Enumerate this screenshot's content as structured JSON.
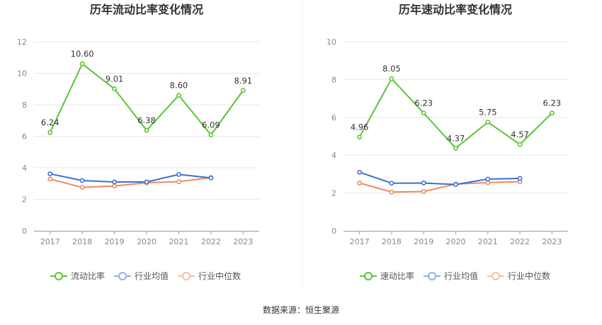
{
  "source_text": "数据来源：恒生聚源",
  "chart_data": [
    {
      "type": "line",
      "title": "历年流动比率变化情况",
      "categories": [
        "2017",
        "2018",
        "2019",
        "2020",
        "2021",
        "2022",
        "2023"
      ],
      "ylim": [
        0,
        12
      ],
      "yticks": [
        0,
        2,
        4,
        6,
        8,
        10,
        12
      ],
      "grid": true,
      "legend_position": "bottom",
      "series": [
        {
          "name": "流动比率",
          "color": "#5ac535",
          "labeled": true,
          "values": [
            6.24,
            10.6,
            9.01,
            6.38,
            8.6,
            6.09,
            8.91
          ],
          "labels": [
            "6.24",
            "10.60",
            "9.01",
            "6.38",
            "8.60",
            "6.09",
            "8.91"
          ]
        },
        {
          "name": "行业均值",
          "color": "#3b6fd6",
          "labeled": false,
          "values": [
            3.62,
            3.19,
            3.1,
            3.1,
            3.58,
            3.36,
            null
          ]
        },
        {
          "name": "行业中位数",
          "color": "#f08a5d",
          "labeled": false,
          "values": [
            3.28,
            2.76,
            2.85,
            3.05,
            3.12,
            3.38,
            null
          ]
        }
      ]
    },
    {
      "type": "line",
      "title": "历年速动比率变化情况",
      "categories": [
        "2017",
        "2018",
        "2019",
        "2020",
        "2021",
        "2022",
        "2023"
      ],
      "ylim": [
        0,
        10
      ],
      "yticks": [
        0,
        2,
        4,
        6,
        8,
        10
      ],
      "grid": true,
      "legend_position": "bottom",
      "series": [
        {
          "name": "速动比率",
          "color": "#5ac535",
          "labeled": true,
          "values": [
            4.96,
            8.05,
            6.23,
            4.37,
            5.75,
            4.57,
            6.23
          ],
          "labels": [
            "4.96",
            "8.05",
            "6.23",
            "4.37",
            "5.75",
            "4.57",
            "6.23"
          ]
        },
        {
          "name": "行业均值",
          "color": "#3b6fd6",
          "labeled": false,
          "values": [
            3.1,
            2.52,
            2.53,
            2.45,
            2.74,
            2.77,
            null
          ]
        },
        {
          "name": "行业中位数",
          "color": "#f08a5d",
          "labeled": false,
          "values": [
            2.53,
            2.05,
            2.08,
            2.47,
            2.55,
            2.6,
            null
          ]
        }
      ]
    }
  ]
}
